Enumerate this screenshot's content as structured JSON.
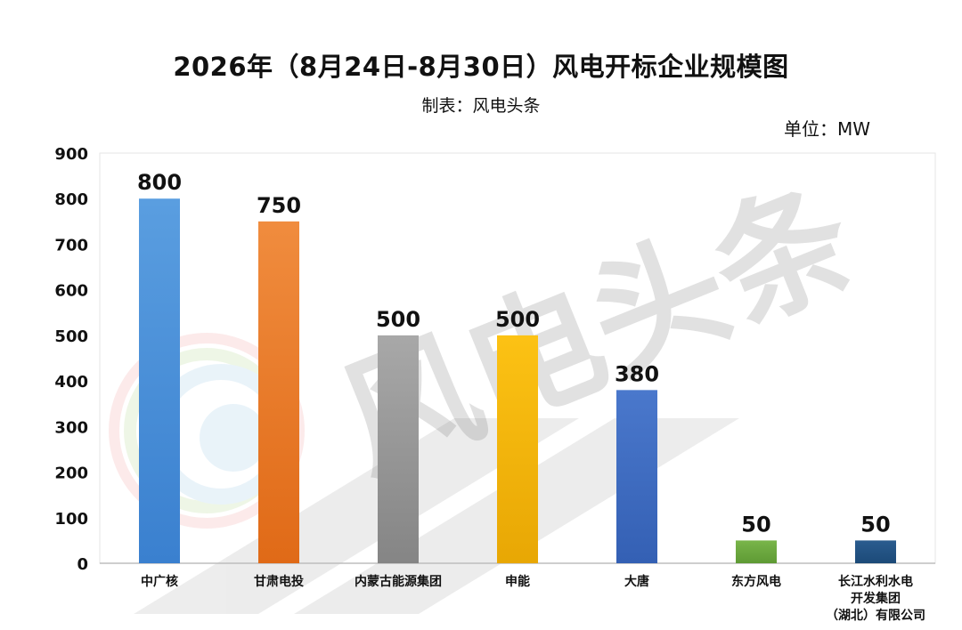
{
  "chart_data": {
    "type": "bar",
    "title": "2026年（8月24日-8月30日）风电开标企业规模图",
    "subtitle": "制表：风电头条",
    "unit_label": "单位：MW",
    "watermark": "风电头条",
    "categories": [
      [
        "中广核"
      ],
      [
        "甘肃电投"
      ],
      [
        "内蒙古能源集团"
      ],
      [
        "申能"
      ],
      [
        "大唐"
      ],
      [
        "东方风电"
      ],
      [
        "长江水利水电",
        "开发集团",
        "（湖北）有限公司"
      ]
    ],
    "values": [
      800,
      750,
      500,
      500,
      380,
      50,
      50
    ],
    "data_labels": [
      "800",
      "750",
      "500",
      "500",
      "380",
      "50",
      "50"
    ],
    "bar_colors": [
      [
        "#5a9ee0",
        "#3a80cf"
      ],
      [
        "#f08c3e",
        "#e06a17"
      ],
      [
        "#a8a8a8",
        "#858585"
      ],
      [
        "#fcc214",
        "#e8a704"
      ],
      [
        "#4a78cc",
        "#3460b4"
      ],
      [
        "#79b54a",
        "#5e9a34"
      ],
      [
        "#2a5c8f",
        "#1c4a78"
      ]
    ],
    "yticks": [
      0,
      100,
      200,
      300,
      400,
      500,
      600,
      700,
      800,
      900
    ],
    "ylim": [
      0,
      900
    ],
    "grid": false,
    "legend": "none"
  }
}
